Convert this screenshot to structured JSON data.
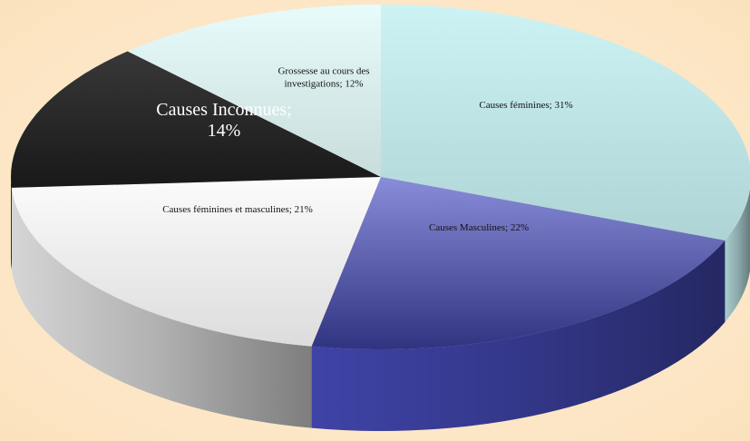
{
  "chart_data": {
    "type": "pie3d",
    "categories": [
      "Causes féminines",
      "Causes Masculines",
      "Causes féminines et masculines",
      "Causes Inconnues",
      "Grossesse au cours des investigations"
    ],
    "values": [
      31,
      22,
      21,
      14,
      12
    ],
    "value_labels": [
      "Causes féminines; 31%",
      "Causes Masculines; 22%",
      "Causes féminines et masculines; 21%",
      "Causes Inconnues; 14%",
      "Grossesse au cours des investigations; 12%"
    ],
    "colors": [
      "#c6f1f3",
      "#4a4fc4",
      "#fbfbfb",
      "#1c1c1c",
      "#e4fbfb"
    ]
  }
}
